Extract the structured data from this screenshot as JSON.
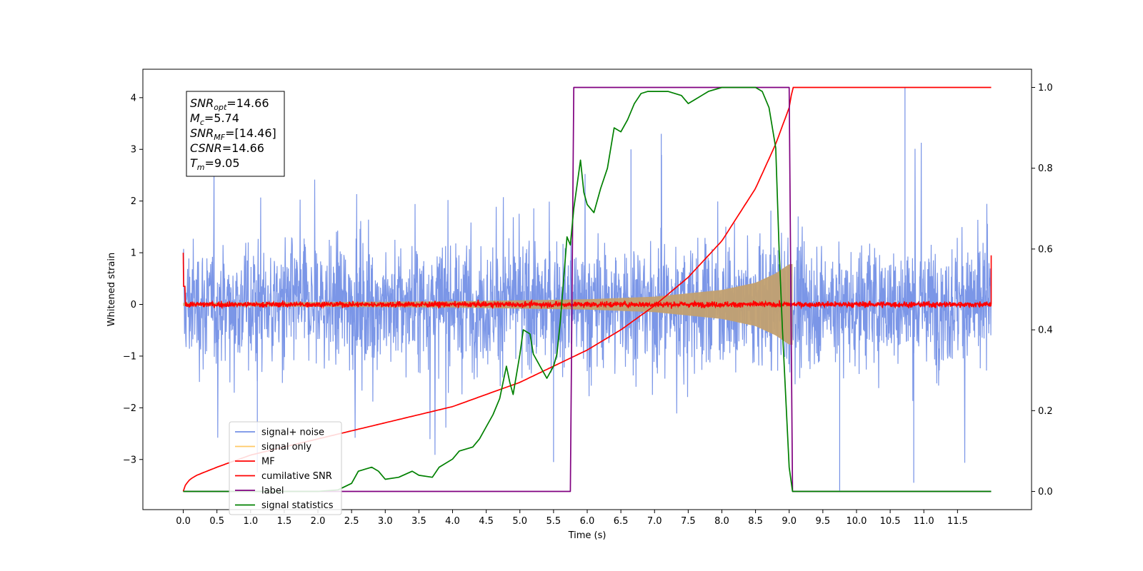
{
  "chart_data": {
    "type": "line",
    "xlabel": "Time (s)",
    "ylabel": "Whitened strain",
    "xlim": [
      -0.6,
      12.6
    ],
    "ylim": [
      -3.97,
      4.55
    ],
    "y2lim": [
      -0.045,
      1.045
    ],
    "x_ticks": [
      "0.0",
      "0.5",
      "1.0",
      "1.5",
      "2.0",
      "2.5",
      "3.0",
      "3.5",
      "4.0",
      "4.5",
      "5.0",
      "5.5",
      "6.0",
      "6.5",
      "7.0",
      "7.5",
      "8.0",
      "8.5",
      "9.0",
      "9.5",
      "10.0",
      "10.5",
      "11.0",
      "11.5"
    ],
    "y_ticks": [
      "4",
      "3",
      "2",
      "1",
      "0",
      "−1",
      "−2",
      "−3"
    ],
    "y2_ticks": [
      "1.0",
      "0.8",
      "0.6",
      "0.4",
      "0.2",
      "0.0"
    ],
    "grid": false,
    "legend_position": "lower-left",
    "annotation": [
      {
        "sym": "SNR",
        "sub": "opt",
        "rest": "=14.66"
      },
      {
        "sym": "M",
        "sub": "c",
        "rest": "=5.74"
      },
      {
        "sym": "SNR",
        "sub": "MF",
        "rest": "=[14.46]"
      },
      {
        "sym": "CSNR",
        "sub": "",
        "rest": "=14.66"
      },
      {
        "sym": "T",
        "sub": "m",
        "rest": "=9.05"
      }
    ],
    "series": [
      {
        "name": "signal+ noise",
        "color": "#7490e6",
        "axis": "left",
        "kind": "noise",
        "x_range": [
          0,
          12.0
        ],
        "approx_amplitude": 2.5
      },
      {
        "name": "signal only",
        "color": "#ffc966",
        "axis": "left",
        "kind": "chirp",
        "x_range": [
          0,
          9.05
        ],
        "envelope_x": [
          0,
          4,
          6,
          7,
          8,
          8.5,
          8.8,
          9.0
        ],
        "envelope_y": [
          0.03,
          0.06,
          0.1,
          0.15,
          0.28,
          0.42,
          0.6,
          0.78
        ]
      },
      {
        "name": "MF",
        "color": "#ff0000",
        "axis": "left",
        "kind": "noise",
        "x_range": [
          0,
          12.0
        ],
        "approx_amplitude": 0.1
      },
      {
        "name": "cumilative SNR",
        "color": "#ff0000",
        "axis": "right",
        "x": [
          0,
          0.01,
          0.05,
          0.1,
          0.2,
          0.5,
          1,
          2,
          3,
          4,
          5,
          5.5,
          6,
          6.5,
          7,
          7.5,
          8,
          8.5,
          8.8,
          9.0,
          9.05,
          12.0
        ],
        "y": [
          0.0,
          0.01,
          0.02,
          0.03,
          0.04,
          0.06,
          0.09,
          0.13,
          0.17,
          0.21,
          0.27,
          0.31,
          0.35,
          0.4,
          0.46,
          0.53,
          0.62,
          0.75,
          0.86,
          0.95,
          1.0,
          1.0
        ]
      },
      {
        "name": "label",
        "color": "#800080",
        "axis": "right",
        "x": [
          0,
          5.75,
          5.8,
          9.0,
          9.05,
          12.0
        ],
        "y": [
          0,
          0,
          1,
          1,
          0,
          0
        ]
      },
      {
        "name": "signal statistics",
        "color": "#008000",
        "axis": "right",
        "x": [
          0,
          1,
          2,
          2.3,
          2.5,
          2.6,
          2.8,
          2.9,
          3,
          3.2,
          3.4,
          3.5,
          3.7,
          3.8,
          4.0,
          4.1,
          4.3,
          4.4,
          4.5,
          4.6,
          4.7,
          4.8,
          4.85,
          4.9,
          5.0,
          5.05,
          5.15,
          5.2,
          5.3,
          5.4,
          5.5,
          5.55,
          5.6,
          5.7,
          5.75,
          5.8,
          5.9,
          5.95,
          6.0,
          6.1,
          6.2,
          6.3,
          6.4,
          6.5,
          6.6,
          6.7,
          6.8,
          6.9,
          7.0,
          7.2,
          7.4,
          7.5,
          7.6,
          7.7,
          7.8,
          8.0,
          8.2,
          8.4,
          8.5,
          8.6,
          8.7,
          8.8,
          8.85,
          8.9,
          9.0,
          9.05,
          12.0
        ],
        "y": [
          0,
          0,
          0.0,
          0.004,
          0.02,
          0.05,
          0.06,
          0.05,
          0.03,
          0.035,
          0.05,
          0.04,
          0.035,
          0.06,
          0.08,
          0.1,
          0.11,
          0.13,
          0.16,
          0.19,
          0.23,
          0.31,
          0.27,
          0.24,
          0.34,
          0.4,
          0.39,
          0.34,
          0.31,
          0.28,
          0.31,
          0.34,
          0.42,
          0.63,
          0.61,
          0.7,
          0.82,
          0.74,
          0.71,
          0.69,
          0.75,
          0.8,
          0.9,
          0.89,
          0.92,
          0.96,
          0.985,
          0.99,
          0.99,
          0.99,
          0.98,
          0.96,
          0.97,
          0.98,
          0.99,
          1.0,
          1.0,
          1.0,
          1.0,
          0.99,
          0.95,
          0.85,
          0.6,
          0.4,
          0.06,
          0.0,
          0.0
        ]
      }
    ]
  }
}
